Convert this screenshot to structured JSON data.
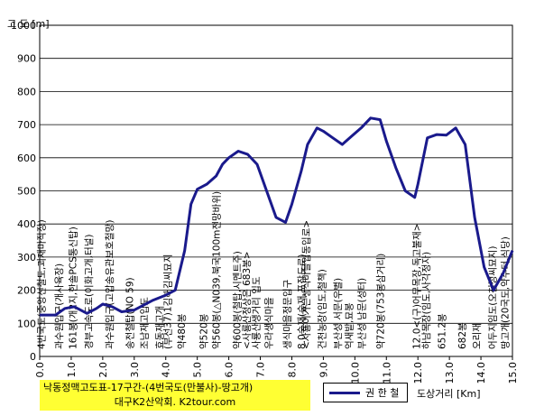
{
  "chart_data": {
    "type": "line",
    "title_lines": [
      "낙동정맥고도표-17구간-(4번국도(만불사)-땅고개)",
      "대구K2산악회. K2tour.com"
    ],
    "ylabel": "고 도 [m]",
    "xlabel": "도상거리 [Km]",
    "legend": "권 한 철",
    "ylim": [
      0,
      1000
    ],
    "xlim": [
      0,
      15
    ],
    "yticks": [
      "0",
      "100",
      "200",
      "300",
      "400",
      "500",
      "600",
      "700",
      "800",
      "900",
      "1000"
    ],
    "xticks": [
      "0.0",
      "1.0",
      "2.0",
      "3.0",
      "4.0",
      "5.0",
      "6.0",
      "7.0",
      "8.0",
      "9.0",
      "10.0",
      "11.0",
      "12.0",
      "13.0",
      "14.0",
      "15.0"
    ],
    "grid": true,
    "series": [
      {
        "name": "권 한 철",
        "color": "#1a1a8c",
        "x": [
          0.0,
          0.5,
          0.8,
          1.1,
          1.5,
          1.8,
          2.0,
          2.3,
          2.6,
          3.0,
          3.3,
          3.6,
          4.0,
          4.3,
          4.6,
          4.8,
          5.0,
          5.3,
          5.6,
          5.8,
          6.0,
          6.3,
          6.6,
          6.9,
          7.2,
          7.5,
          7.8,
          8.0,
          8.3,
          8.5,
          8.8,
          9.0,
          9.3,
          9.6,
          9.9,
          10.2,
          10.5,
          10.8,
          11.0,
          11.3,
          11.6,
          11.9,
          12.0,
          12.3,
          12.6,
          12.9,
          13.2,
          13.5,
          13.8,
          14.1,
          14.4,
          14.7,
          15.0
        ],
        "y": [
          125,
          125,
          145,
          150,
          130,
          145,
          158,
          150,
          135,
          140,
          155,
          170,
          185,
          200,
          320,
          460,
          505,
          520,
          545,
          580,
          600,
          620,
          610,
          580,
          500,
          420,
          405,
          460,
          560,
          640,
          690,
          680,
          660,
          640,
          665,
          690,
          720,
          715,
          650,
          570,
          500,
          480,
          520,
          660,
          670,
          668,
          690,
          640,
          420,
          270,
          200,
          250,
          320
        ]
      }
    ],
    "annotations": [
      {
        "x": 0.05,
        "text": "4번국도(중앙선철도,괴재마작장)"
      },
      {
        "x": 0.6,
        "text": "과수원입구(개사육장)"
      },
      {
        "x": 1.05,
        "text": "161봉(개2지,한솔PCS통신탑)"
      },
      {
        "x": 1.55,
        "text": "경부고속도로(이화고개,터널)"
      },
      {
        "x": 2.2,
        "text": "과수원입구(고압송유관보호철망)"
      },
      {
        "x": 2.85,
        "text": "송전철탑(NO 59)"
      },
      {
        "x": 3.3,
        "text": "조남재고입도"
      },
      {
        "x": 3.8,
        "text": "효동재고개"
      },
      {
        "x": 4.05,
        "text": "(부선37)1김해김씨묘지"
      },
      {
        "x": 4.5,
        "text": "약480봉"
      },
      {
        "x": 5.2,
        "text": "약520봉"
      },
      {
        "x": 5.6,
        "text": "약560봉(△N039,북국100m전망바위)"
      },
      {
        "x": 6.25,
        "text": "약600봉(철탑,시멘트주)"
      },
      {
        "x": 6.55,
        "text": "<사룡산정상은 683봉>"
      },
      {
        "x": 6.85,
        "text": "사룡산생거리 입도"
      },
      {
        "x": 7.25,
        "text": "우라생식마을"
      },
      {
        "x": 7.85,
        "text": "생식마을정문입구"
      },
      {
        "x": 8.3,
        "text": "8.0숙재(숲재,포장도로)"
      },
      {
        "x": 8.45,
        "text": "<사룡이가는생식마을입동입로>"
      },
      {
        "x": 8.95,
        "text": "건천농장(임도,철책)"
      },
      {
        "x": 9.45,
        "text": "부산성 서문(우별)"
      },
      {
        "x": 9.8,
        "text": "억새밭,묘봉"
      },
      {
        "x": 10.2,
        "text": "부산성 남문(성터)"
      },
      {
        "x": 10.8,
        "text": "약720봉(753봉삼거리)"
      },
      {
        "x": 11.95,
        "text": "12.0<(구)어무목장,독고불재>"
      },
      {
        "x": 12.25,
        "text": "하남목장(임도,사각정자)"
      },
      {
        "x": 12.75,
        "text": "651.2봉"
      },
      {
        "x": 13.4,
        "text": "682봉"
      },
      {
        "x": 13.85,
        "text": "오리재"
      },
      {
        "x": 14.35,
        "text": "어두지임도(오천정씨묘지)"
      },
      {
        "x": 14.75,
        "text": "땅고개(20국도,약수터,식당)"
      }
    ]
  }
}
